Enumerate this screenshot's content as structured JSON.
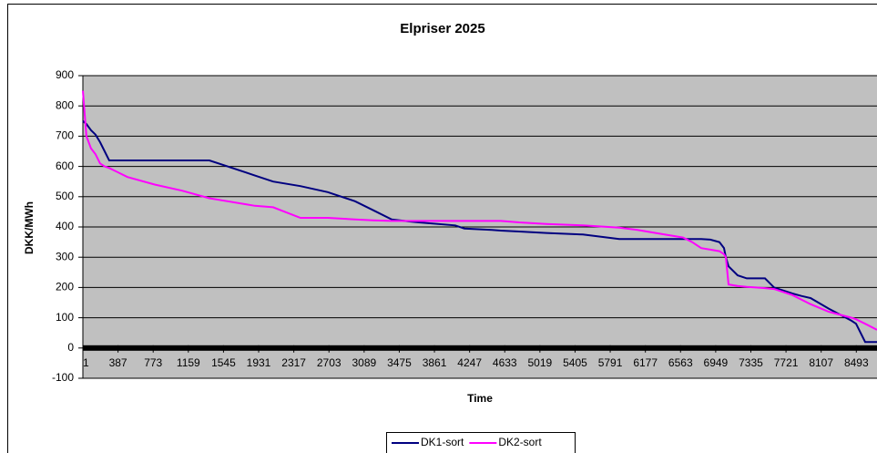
{
  "chart_data": {
    "type": "line",
    "title": "Elpriser 2025",
    "x_label": "Time",
    "y_label": "DKK/MWh",
    "x": [
      1,
      40,
      90,
      140,
      190,
      240,
      290,
      490,
      790,
      1090,
      1390,
      1590,
      1790,
      1890,
      2090,
      2390,
      2690,
      2990,
      3190,
      3390,
      3590,
      3690,
      4090,
      4190,
      4490,
      4590,
      4790,
      5090,
      5490,
      5890,
      6090,
      6590,
      6690,
      6790,
      6890,
      6990,
      7040,
      7060,
      7090,
      7190,
      7290,
      7390,
      7490,
      7590,
      7790,
      7890,
      7990,
      8190,
      8440,
      8490,
      8590,
      8720
    ],
    "series": [
      {
        "name": "DK1-sort",
        "color": "#000080",
        "values": [
          750,
          740,
          720,
          705,
          680,
          650,
          620,
          620,
          620,
          620,
          620,
          600,
          580,
          570,
          550,
          535,
          515,
          485,
          455,
          425,
          418,
          415,
          405,
          395,
          390,
          388,
          385,
          380,
          375,
          360,
          360,
          360,
          360,
          360,
          358,
          350,
          330,
          300,
          270,
          240,
          230,
          230,
          230,
          200,
          180,
          172,
          165,
          130,
          90,
          80,
          20,
          20
        ]
      },
      {
        "name": "DK2-sort",
        "color": "#ff00ff",
        "values": [
          850,
          700,
          660,
          640,
          610,
          600,
          595,
          565,
          540,
          520,
          495,
          485,
          475,
          470,
          465,
          430,
          430,
          425,
          422,
          420,
          420,
          420,
          420,
          420,
          420,
          420,
          415,
          410,
          405,
          398,
          390,
          365,
          350,
          330,
          325,
          320,
          310,
          300,
          210,
          205,
          202,
          200,
          198,
          195,
          175,
          160,
          145,
          120,
          100,
          95,
          80,
          60
        ]
      }
    ],
    "xlim": [
      1,
      8760
    ],
    "xticks": [
      1,
      387,
      773,
      1159,
      1545,
      1931,
      2317,
      2703,
      3089,
      3475,
      3861,
      4247,
      4633,
      5019,
      5405,
      5791,
      6177,
      6563,
      6949,
      7335,
      7721,
      8107,
      8493
    ],
    "ylim": [
      -100,
      900
    ],
    "yticks": [
      -100,
      0,
      100,
      200,
      300,
      400,
      500,
      600,
      700,
      800,
      900
    ],
    "grid": true,
    "plot_background": "#c0c0c0",
    "legend": "bottom"
  }
}
